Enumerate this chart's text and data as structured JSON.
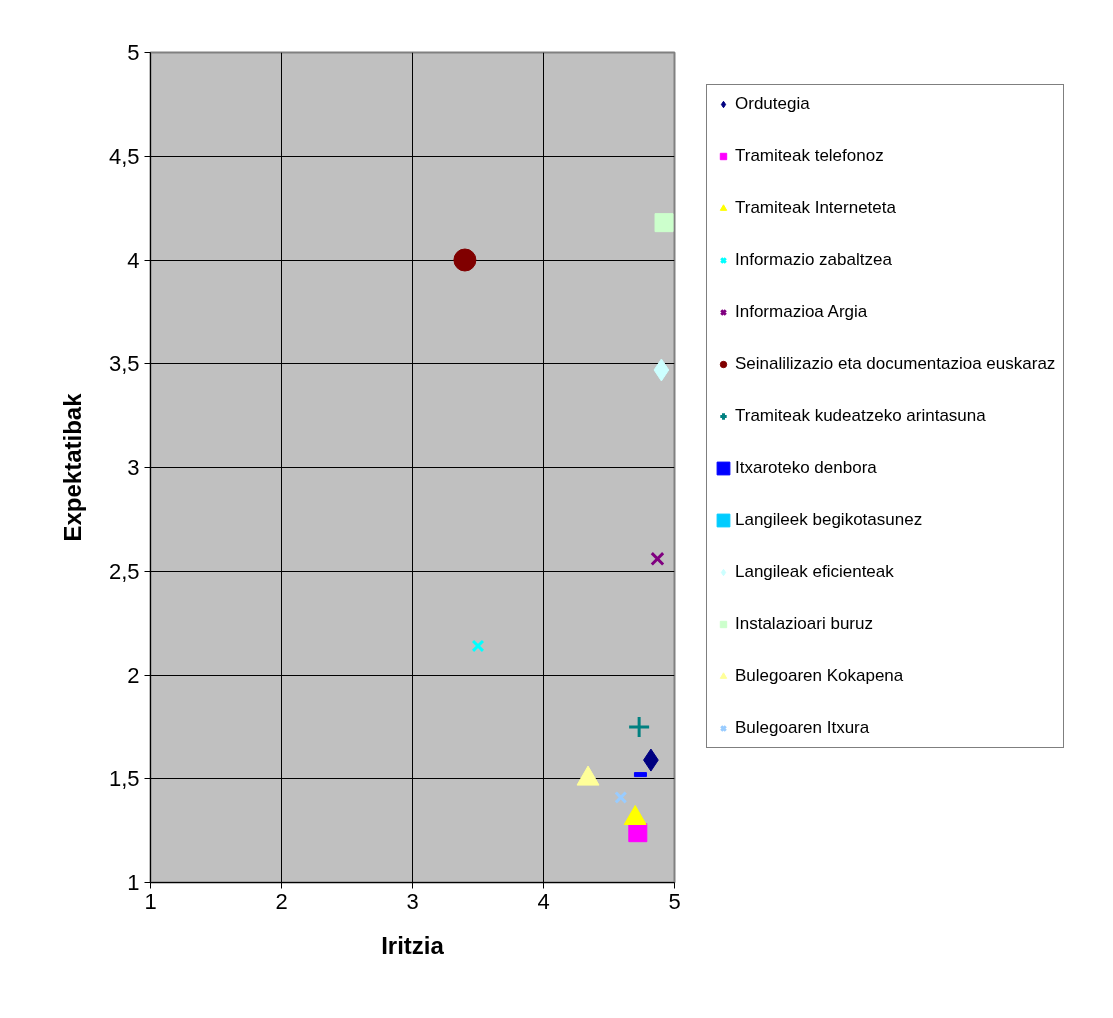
{
  "chart_data": {
    "type": "scatter",
    "xlabel": "Iritzia",
    "ylabel": "Expektatibak",
    "xlim": [
      1,
      5
    ],
    "ylim": [
      1,
      5
    ],
    "xticks": [
      1,
      2,
      3,
      4,
      5
    ],
    "yticks": [
      1,
      {
        "value": 1.5,
        "label": "1,5"
      },
      2,
      {
        "value": 2.5,
        "label": "2,5"
      },
      3,
      {
        "value": 3.5,
        "label": "3,5"
      },
      4,
      {
        "value": 4.5,
        "label": "4,5"
      },
      5
    ],
    "grid": true,
    "legend": "right",
    "series": [
      {
        "name": "Ordutegia",
        "color": "#000080",
        "marker": "diamond",
        "x": [
          4.82
        ],
        "values": [
          1.59
        ]
      },
      {
        "name": "Tramiteak telefonoz",
        "color": "#ff00ff",
        "marker": "square",
        "x": [
          4.72
        ],
        "values": [
          1.24
        ]
      },
      {
        "name": "Tramiteak Interneteta",
        "color": "#ffff00",
        "marker": "triangle",
        "x": [
          4.7
        ],
        "values": [
          1.31
        ]
      },
      {
        "name": "Informazio zabaltzea",
        "color": "#00ffff",
        "marker": "x",
        "x": [
          3.5
        ],
        "values": [
          2.14
        ]
      },
      {
        "name": "Informazioa Argia",
        "color": "#800080",
        "marker": "cross",
        "x": [
          4.87
        ],
        "values": [
          2.56
        ]
      },
      {
        "name": "Seinalilizazio eta documentazioa euskaraz",
        "color": "#800000",
        "marker": "circle",
        "x": [
          3.4
        ],
        "values": [
          4.0
        ]
      },
      {
        "name": "Tramiteak kudeatzeko arintasuna",
        "color": "#008080",
        "marker": "plus",
        "x": [
          4.73
        ],
        "values": [
          1.75
        ]
      },
      {
        "name": "Itxaroteko denbora",
        "color": "#0000ff",
        "x": [
          4.74
        ],
        "values": [
          1.52
        ]
      },
      {
        "name": "Langileek begikotasunez",
        "color": "#00ccff",
        "x": [
          null
        ],
        "values": [
          null
        ]
      },
      {
        "name": "Langileak eficienteak",
        "color": "#ccffff",
        "marker": "diamond",
        "x": [
          4.9
        ],
        "values": [
          3.47
        ]
      },
      {
        "name": "Instalazioari buruz",
        "color": "#ccffcc",
        "marker": "square",
        "x": [
          4.92
        ],
        "values": [
          4.18
        ]
      },
      {
        "name": "Bulegoaren Kokapena",
        "color": "#ffff99",
        "marker": "triangle",
        "x": [
          4.34
        ],
        "values": [
          1.5
        ]
      },
      {
        "name": "Bulegoaren Itxura",
        "color": "#99ccff",
        "marker": "x",
        "x": [
          4.59
        ],
        "values": [
          1.41
        ]
      }
    ]
  }
}
